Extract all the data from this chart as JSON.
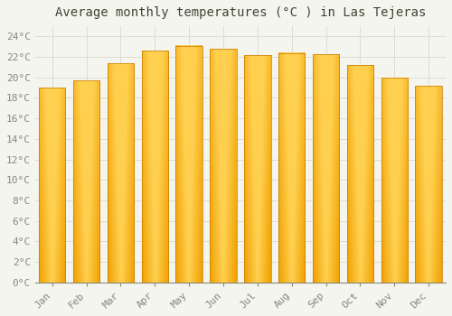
{
  "title": "Average monthly temperatures (°C ) in Las Tejeras",
  "months": [
    "Jan",
    "Feb",
    "Mar",
    "Apr",
    "May",
    "Jun",
    "Jul",
    "Aug",
    "Sep",
    "Oct",
    "Nov",
    "Dec"
  ],
  "values": [
    19.0,
    19.7,
    21.4,
    22.6,
    23.1,
    22.8,
    22.2,
    22.4,
    22.3,
    21.2,
    20.0,
    19.2
  ],
  "bar_color_center": "#FFD050",
  "bar_color_edge": "#F0A000",
  "bar_edge_color": "#C87800",
  "background_color": "#F5F5F0",
  "plot_bg_color": "#F5F5F0",
  "grid_color": "#DDDDCC",
  "text_color": "#888877",
  "title_color": "#444433",
  "ylim": [
    0,
    25
  ],
  "yticks": [
    0,
    2,
    4,
    6,
    8,
    10,
    12,
    14,
    16,
    18,
    20,
    22,
    24
  ],
  "ytick_labels": [
    "0°C",
    "2°C",
    "4°C",
    "6°C",
    "8°C",
    "10°C",
    "12°C",
    "14°C",
    "16°C",
    "18°C",
    "20°C",
    "22°C",
    "24°C"
  ],
  "title_fontsize": 10,
  "tick_fontsize": 8,
  "font_family": "monospace",
  "bar_width": 0.78
}
